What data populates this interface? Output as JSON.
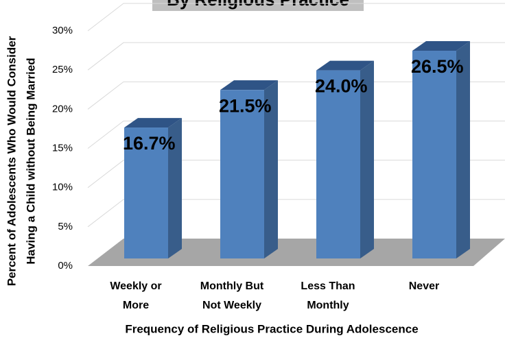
{
  "chart_data": {
    "type": "bar3d",
    "title": "By Religious Practice",
    "ylabel": [
      "Percent of Adolescents Who Would Consider",
      "Having a Child without Being Married"
    ],
    "xlabel": "Frequency of Religious Practice During Adolescence",
    "categories": [
      "Weekly or More",
      "Monthly But Not Weekly",
      "Less Than Monthly",
      "Never"
    ],
    "values": [
      16.7,
      21.5,
      24.0,
      26.5
    ],
    "value_labels": [
      "16.7%",
      "21.5%",
      "24.0%",
      "26.5%"
    ],
    "color": "#4f81bd",
    "ylim": [
      0,
      30
    ],
    "yticks": [
      {
        "value": 0,
        "label": "0%"
      },
      {
        "value": 5,
        "label": "5%"
      },
      {
        "value": 10,
        "label": "10%"
      },
      {
        "value": 15,
        "label": "15%"
      },
      {
        "value": 20,
        "label": "20%"
      },
      {
        "value": 25,
        "label": "25%"
      },
      {
        "value": 30,
        "label": "30%"
      }
    ],
    "grid": true
  }
}
